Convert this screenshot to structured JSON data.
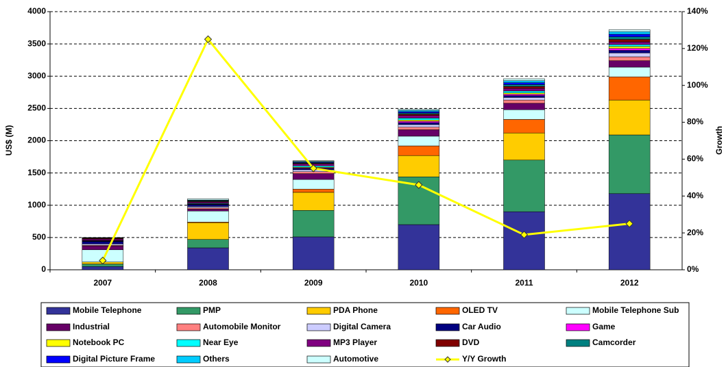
{
  "chart_data": {
    "type": "bar",
    "stacked": true,
    "ylabel": "US$ (M)",
    "y2label": "Growth",
    "categories": [
      "2007",
      "2008",
      "2009",
      "2010",
      "2011",
      "2012"
    ],
    "ylim": [
      0,
      4000
    ],
    "yticks": [
      0,
      500,
      1000,
      1500,
      2000,
      2500,
      3000,
      3500,
      4000
    ],
    "y2lim": [
      0,
      140
    ],
    "y2ticks": [
      {
        "value": 0,
        "label": "0%"
      },
      {
        "value": 20,
        "label": "20%"
      },
      {
        "value": 40,
        "label": "40%"
      },
      {
        "value": 60,
        "label": "60%"
      },
      {
        "value": 80,
        "label": "80%"
      },
      {
        "value": 100,
        "label": "100%"
      },
      {
        "value": 120,
        "label": "120%"
      },
      {
        "value": 140,
        "label": "140%"
      }
    ],
    "grid": true,
    "legend": "bottom",
    "series": [
      {
        "name": "Mobile Telephone",
        "color": "#333399",
        "values": [
          50,
          340,
          510,
          700,
          900,
          1180
        ]
      },
      {
        "name": "PMP",
        "color": "#339966",
        "values": [
          40,
          130,
          410,
          740,
          800,
          910
        ]
      },
      {
        "name": "PDA Phone",
        "color": "#ffcc00",
        "values": [
          30,
          260,
          280,
          330,
          420,
          540
        ]
      },
      {
        "name": "OLED TV",
        "color": "#ff6600",
        "values": [
          0,
          10,
          50,
          150,
          210,
          360
        ]
      },
      {
        "name": "Mobile Telephone Sub",
        "color": "#ccffff",
        "values": [
          190,
          170,
          150,
          150,
          150,
          150
        ]
      },
      {
        "name": "Industrial",
        "color": "#660066",
        "values": [
          60,
          30,
          90,
          100,
          100,
          100
        ]
      },
      {
        "name": "Automobile Monitor",
        "color": "#ff8080",
        "values": [
          10,
          20,
          30,
          40,
          50,
          60
        ]
      },
      {
        "name": "Digital Camera",
        "color": "#ccccff",
        "values": [
          20,
          20,
          30,
          40,
          40,
          60
        ]
      },
      {
        "name": "Car Audio",
        "color": "#000080",
        "values": [
          40,
          30,
          20,
          30,
          30,
          40
        ]
      },
      {
        "name": "Game",
        "color": "#ff00ff",
        "values": [
          5,
          5,
          10,
          20,
          20,
          30
        ]
      },
      {
        "name": "Notebook PC",
        "color": "#ffff00",
        "values": [
          5,
          5,
          10,
          20,
          20,
          30
        ]
      },
      {
        "name": "Near Eye",
        "color": "#00ffff",
        "values": [
          5,
          10,
          20,
          30,
          30,
          30
        ]
      },
      {
        "name": "MP3 Player",
        "color": "#800080",
        "values": [
          20,
          20,
          30,
          40,
          40,
          40
        ]
      },
      {
        "name": "DVD",
        "color": "#800000",
        "values": [
          10,
          10,
          10,
          20,
          30,
          40
        ]
      },
      {
        "name": "Camcorder",
        "color": "#008080",
        "values": [
          5,
          10,
          10,
          20,
          30,
          40
        ]
      },
      {
        "name": "Digital Picture Frame",
        "color": "#0000ff",
        "values": [
          5,
          5,
          10,
          20,
          30,
          40
        ]
      },
      {
        "name": "Others",
        "color": "#00ccff",
        "values": [
          5,
          5,
          10,
          20,
          30,
          40
        ]
      },
      {
        "name": "Automotive",
        "color": "#ccffff",
        "values": [
          0,
          20,
          10,
          20,
          30,
          30
        ]
      },
      {
        "name": "Y/Y Growth",
        "color": "#ffff00",
        "type": "line",
        "axis": "y2",
        "values": [
          5,
          125,
          55,
          46,
          19,
          25
        ]
      }
    ]
  }
}
